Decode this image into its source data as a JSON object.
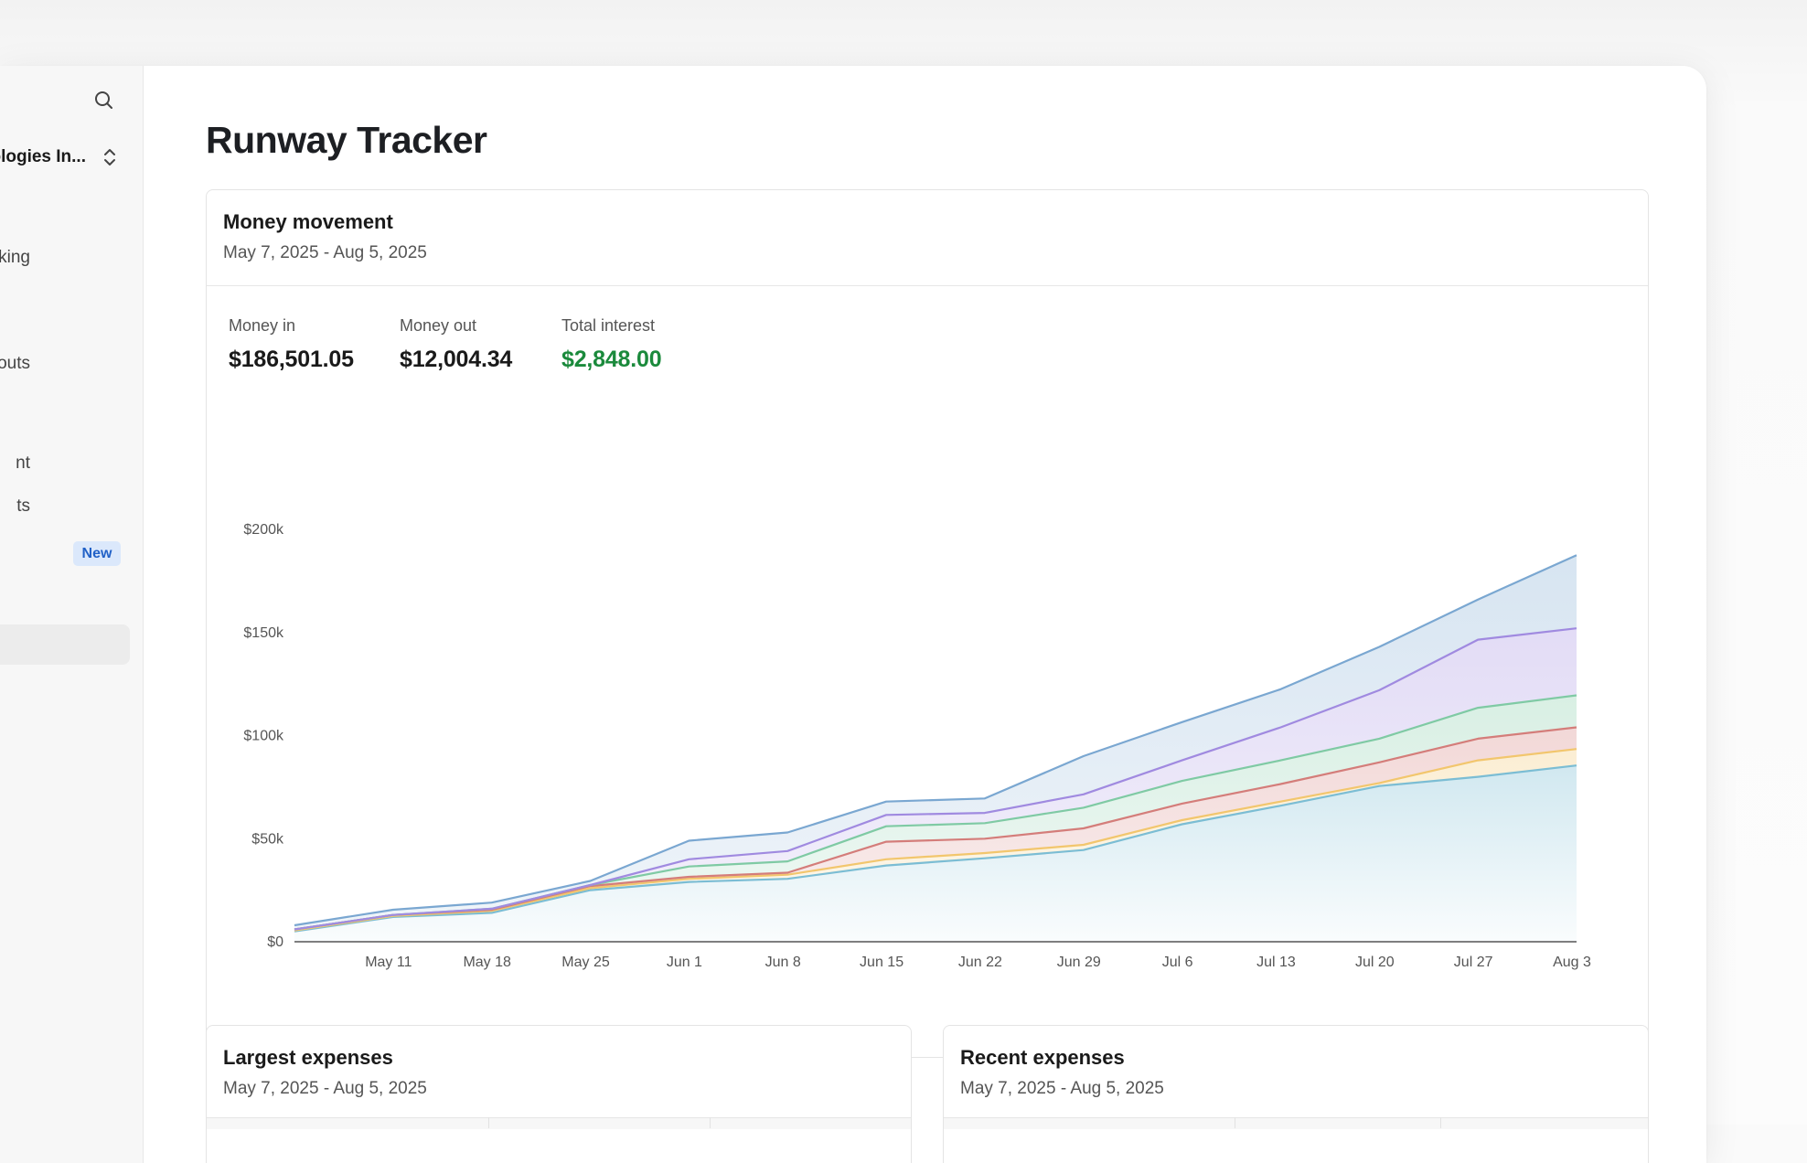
{
  "sidebar": {
    "org_name": "ologies In...",
    "items": [
      {
        "label": "king"
      },
      {
        "label": "ayouts"
      },
      {
        "label": "nt"
      },
      {
        "label": "ts"
      },
      {
        "label": ""
      }
    ],
    "badge": "New"
  },
  "page": {
    "title": "Runway Tracker"
  },
  "money_movement": {
    "title": "Money movement",
    "date_range": "May 7, 2025 - Aug 5, 2025",
    "stats": [
      {
        "label": "Money in",
        "value": "$186,501.05"
      },
      {
        "label": "Money out",
        "value": "$12,004.34"
      },
      {
        "label": "Total interest",
        "value": "$2,848.00"
      }
    ],
    "interest_color": "#1b8a3c"
  },
  "largest_expenses": {
    "title": "Largest expenses",
    "date_range": "May 7, 2025 - Aug 5, 2025"
  },
  "recent_expenses": {
    "title": "Recent expenses",
    "date_range": "May 7, 2025 - Aug 5, 2025"
  },
  "chart_data": {
    "type": "area",
    "stacked": true,
    "x": [
      "May 7",
      "May 11",
      "May 18",
      "May 25",
      "Jun 1",
      "Jun 8",
      "Jun 15",
      "Jun 22",
      "Jun 29",
      "Jul 6",
      "Jul 13",
      "Jul 20",
      "Jul 27",
      "Aug 3"
    ],
    "x_tick_labels": [
      "May 11",
      "May 18",
      "May 25",
      "Jun 1",
      "Jun 8",
      "Jun 15",
      "Jun 22",
      "Jun 29",
      "Jul 6",
      "Jul 13",
      "Jul 20",
      "Jul 27",
      "Aug 3"
    ],
    "y_tick_labels": [
      "$0",
      "$50k",
      "$100k",
      "$150k",
      "$200k"
    ],
    "ylim": [
      0,
      200000
    ],
    "grid": false,
    "series": [
      {
        "color": "#7bbdd4",
        "values": [
          5000,
          12000,
          14000,
          25000,
          29000,
          30500,
          37000,
          40500,
          44500,
          57000,
          66000,
          75500,
          80000,
          85500
        ]
      },
      {
        "color": "#f2c66d",
        "values": [
          500,
          500,
          1000,
          1000,
          1500,
          2000,
          3000,
          2500,
          2500,
          2000,
          2000,
          1500,
          8000,
          8000
        ]
      },
      {
        "color": "#d47d7a",
        "values": [
          500,
          500,
          500,
          1000,
          1000,
          1000,
          8500,
          7000,
          8000,
          8000,
          8500,
          10000,
          10500,
          10500
        ]
      },
      {
        "color": "#7fcaa4",
        "values": [
          0,
          0,
          500,
          500,
          5000,
          5500,
          7500,
          7500,
          10000,
          11000,
          11500,
          11500,
          15000,
          15500
        ]
      },
      {
        "color": "#a08ae0",
        "values": [
          0,
          0,
          0,
          0,
          3500,
          5000,
          5500,
          5000,
          6500,
          10000,
          16000,
          23500,
          33000,
          32500
        ]
      },
      {
        "color": "#7aa7d1",
        "values": [
          2000,
          2500,
          3000,
          2000,
          9000,
          9000,
          6500,
          7000,
          18500,
          18500,
          18500,
          21000,
          19500,
          35500
        ]
      }
    ]
  }
}
